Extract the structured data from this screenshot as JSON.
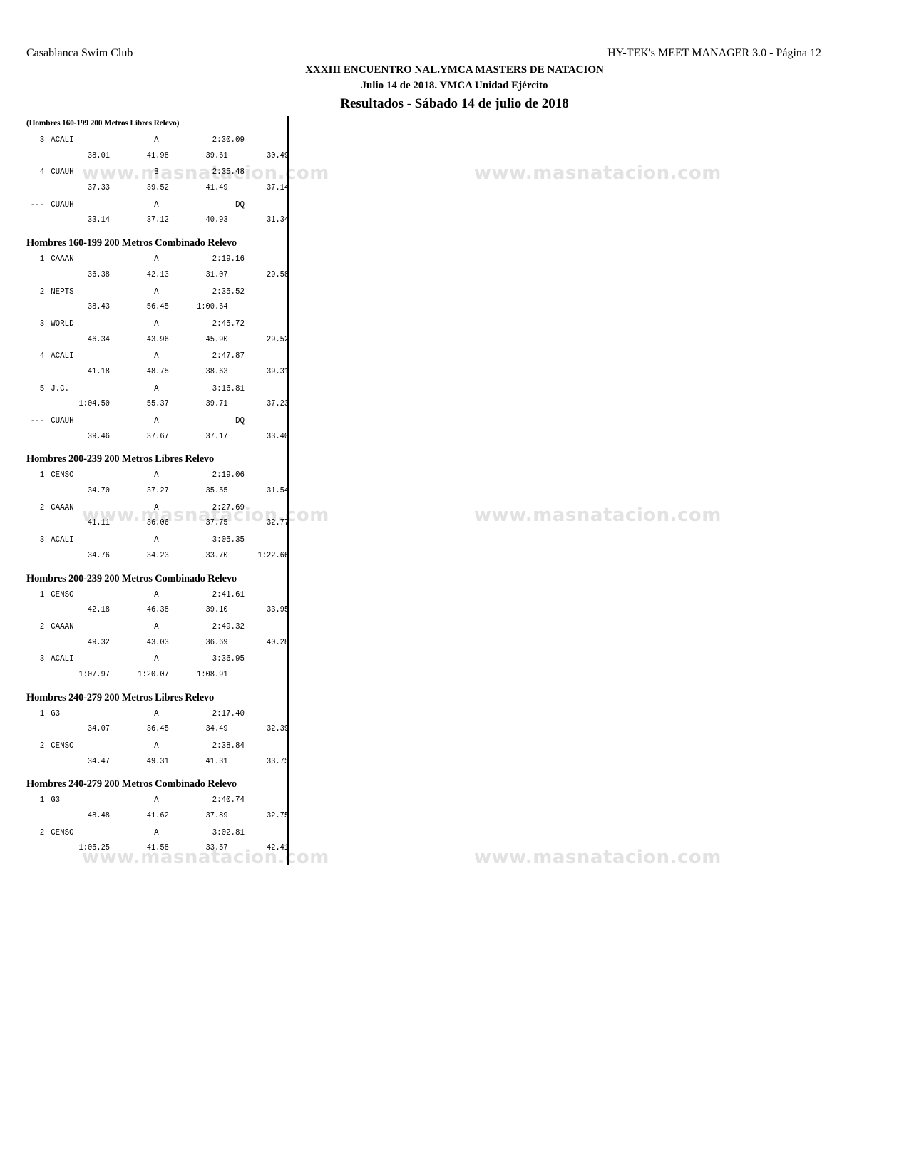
{
  "header": {
    "club": "Casablanca Swim Club",
    "software": "HY-TEK's MEET MANAGER 3.0 - Página 12",
    "meet_title": "XXXIII ENCUENTRO NAL.YMCA MASTERS DE NATACION",
    "meet_subtitle": "Julio 14 de 2018. YMCA Unidad Ejército",
    "results_title": "Resultados - Sábado 14 de julio de 2018"
  },
  "watermark": "www.masnatacion.com",
  "events": [
    {
      "title": "(Hombres 160-199 200 Metros Libres Relevo)",
      "continued": true,
      "entries": [
        {
          "place": "3",
          "team": "ACALI",
          "relay": "A",
          "time": "2:30.09",
          "splits": [
            "38.01",
            "41.98",
            "39.61",
            "30.49"
          ]
        },
        {
          "place": "4",
          "team": "CUAUH",
          "relay": "B",
          "time": "2:35.48",
          "splits": [
            "37.33",
            "39.52",
            "41.49",
            "37.14"
          ]
        },
        {
          "place": "---",
          "team": "CUAUH",
          "relay": "A",
          "time": "DQ",
          "splits": [
            "33.14",
            "37.12",
            "40.93",
            "31.34"
          ]
        }
      ]
    },
    {
      "title": "Hombres 160-199 200 Metros Combinado Relevo",
      "entries": [
        {
          "place": "1",
          "team": "CAAAN",
          "relay": "A",
          "time": "2:19.16",
          "splits": [
            "36.38",
            "42.13",
            "31.07",
            "29.58"
          ]
        },
        {
          "place": "2",
          "team": "NEPTS",
          "relay": "A",
          "time": "2:35.52",
          "splits": [
            "38.43",
            "56.45",
            "1:00.64",
            ""
          ]
        },
        {
          "place": "3",
          "team": "WORLD",
          "relay": "A",
          "time": "2:45.72",
          "splits": [
            "46.34",
            "43.96",
            "45.90",
            "29.52"
          ]
        },
        {
          "place": "4",
          "team": "ACALI",
          "relay": "A",
          "time": "2:47.87",
          "splits": [
            "41.18",
            "48.75",
            "38.63",
            "39.31"
          ]
        },
        {
          "place": "5",
          "team": "J.C.",
          "relay": "A",
          "time": "3:16.81",
          "splits": [
            "1:04.50",
            "55.37",
            "39.71",
            "37.23"
          ]
        },
        {
          "place": "---",
          "team": "CUAUH",
          "relay": "A",
          "time": "DQ",
          "splits": [
            "39.46",
            "37.67",
            "37.17",
            "33.40"
          ]
        }
      ]
    },
    {
      "title": "Hombres 200-239 200 Metros Libres Relevo",
      "entries": [
        {
          "place": "1",
          "team": "CENSO",
          "relay": "A",
          "time": "2:19.06",
          "splits": [
            "34.70",
            "37.27",
            "35.55",
            "31.54"
          ]
        },
        {
          "place": "2",
          "team": "CAAAN",
          "relay": "A",
          "time": "2:27.69",
          "splits": [
            "41.11",
            "36.06",
            "37.75",
            "32.77"
          ]
        },
        {
          "place": "3",
          "team": "ACALI",
          "relay": "A",
          "time": "3:05.35",
          "splits": [
            "34.76",
            "34.23",
            "33.70",
            "1:22.66"
          ]
        }
      ]
    },
    {
      "title": "Hombres 200-239 200 Metros Combinado Relevo",
      "entries": [
        {
          "place": "1",
          "team": "CENSO",
          "relay": "A",
          "time": "2:41.61",
          "splits": [
            "42.18",
            "46.38",
            "39.10",
            "33.95"
          ]
        },
        {
          "place": "2",
          "team": "CAAAN",
          "relay": "A",
          "time": "2:49.32",
          "splits": [
            "49.32",
            "43.03",
            "36.69",
            "40.28"
          ]
        },
        {
          "place": "3",
          "team": "ACALI",
          "relay": "A",
          "time": "3:36.95",
          "splits": [
            "1:07.97",
            "1:20.07",
            "1:08.91",
            ""
          ]
        }
      ]
    },
    {
      "title": "Hombres 240-279 200 Metros Libres Relevo",
      "entries": [
        {
          "place": "1",
          "team": "G3",
          "relay": "A",
          "time": "2:17.40",
          "splits": [
            "34.07",
            "36.45",
            "34.49",
            "32.39"
          ]
        },
        {
          "place": "2",
          "team": "CENSO",
          "relay": "A",
          "time": "2:38.84",
          "splits": [
            "34.47",
            "49.31",
            "41.31",
            "33.75"
          ]
        }
      ]
    },
    {
      "title": "Hombres 240-279 200 Metros Combinado Relevo",
      "entries": [
        {
          "place": "1",
          "team": "G3",
          "relay": "A",
          "time": "2:40.74",
          "splits": [
            "48.48",
            "41.62",
            "37.89",
            "32.75"
          ]
        },
        {
          "place": "2",
          "team": "CENSO",
          "relay": "A",
          "time": "3:02.81",
          "splits": [
            "1:05.25",
            "41.58",
            "33.57",
            "42.41"
          ]
        }
      ]
    }
  ]
}
